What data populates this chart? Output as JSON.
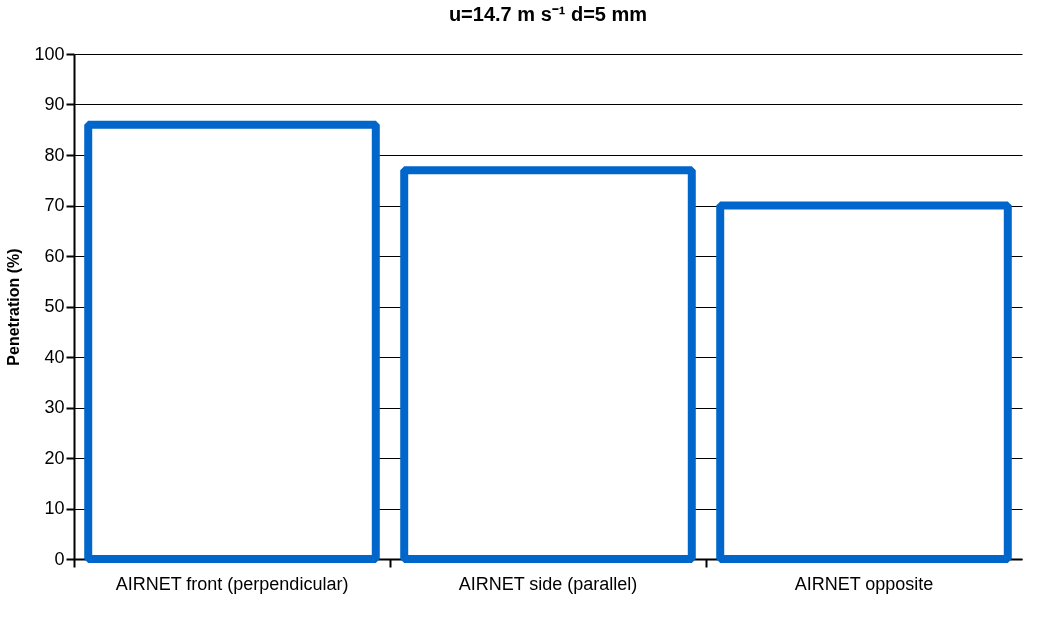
{
  "chart_data": {
    "type": "bar",
    "title": "u=14.7 m s⁻¹    d=5 mm",
    "ylabel": "Penetration (%)",
    "categories": [
      "AIRNET front (perpendicular)",
      "AIRNET side (parallel)",
      "AIRNET opposite"
    ],
    "values": [
      86,
      77,
      70
    ],
    "color": "#0066cc",
    "ylim": [
      0,
      100
    ],
    "yticks": [
      0,
      10,
      20,
      30,
      40,
      50,
      60,
      70,
      80,
      90,
      100
    ],
    "grid": "y"
  }
}
